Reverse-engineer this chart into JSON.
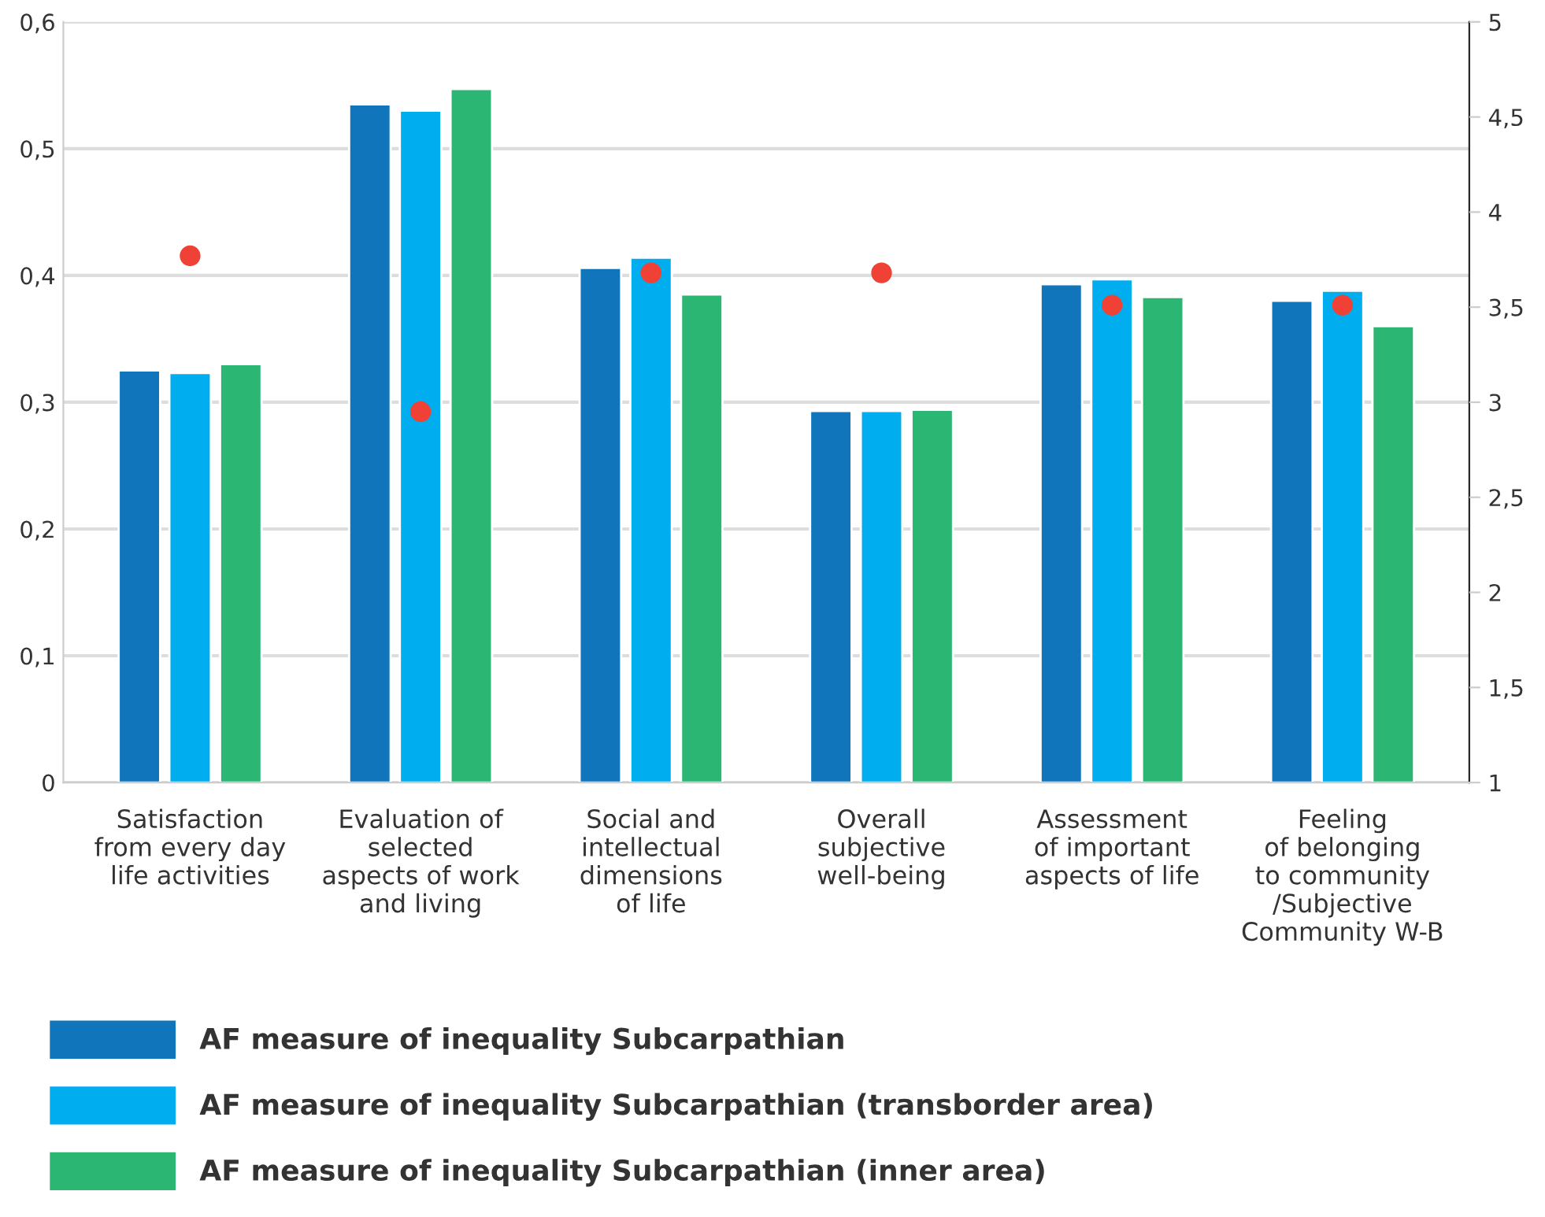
{
  "chart_data": {
    "type": "bar",
    "categories": [
      "Satisfaction\nfrom every day\nlife activities",
      "Evaluation of\nselected\naspects of work\nand living",
      "Social and\nintellectual\ndimensions\nof life",
      "Overall\nsubjective\nwell-being",
      "Assessment\nof important\naspects of life",
      "Feeling\nof belonging\nto community\n/Subjective\nCommunity W-B"
    ],
    "series": [
      {
        "name": "AF measure of inequality Subcarpathian",
        "color": "#1075bb",
        "values": [
          0.325,
          0.535,
          0.406,
          0.293,
          0.393,
          0.38
        ]
      },
      {
        "name": "AF measure of inequality Subcarpathian (transborder area)",
        "color": "#00adee",
        "values": [
          0.323,
          0.53,
          0.414,
          0.293,
          0.397,
          0.388
        ]
      },
      {
        "name": "AF measure of inequality Subcarpathian (inner area)",
        "color": "#2bb673",
        "values": [
          0.33,
          0.547,
          0.385,
          0.294,
          0.383,
          0.36
        ]
      },
      {
        "type": "scatter",
        "axis": "y2",
        "marker": "circle",
        "color": "#ef4136",
        "values": [
          3.77,
          2.95,
          3.68,
          3.68,
          3.51,
          3.51
        ]
      }
    ],
    "ylim": [
      0,
      0.6
    ],
    "yticks": [
      {
        "value": 0,
        "label": "0"
      },
      {
        "value": 0.1,
        "label": "0,1"
      },
      {
        "value": 0.2,
        "label": "0,2"
      },
      {
        "value": 0.3,
        "label": "0,3"
      },
      {
        "value": 0.4,
        "label": "0,4"
      },
      {
        "value": 0.5,
        "label": "0,5"
      },
      {
        "value": 0.6,
        "label": "0,6"
      }
    ],
    "y2lim": [
      1,
      5
    ],
    "y2ticks": [
      1,
      {
        "value": 1.5,
        "label": "1,5"
      },
      2,
      {
        "value": 2.5,
        "label": "2,5"
      },
      3,
      {
        "value": 3.5,
        "label": "3,5"
      },
      4,
      {
        "value": 4.5,
        "label": "4,5"
      },
      5
    ],
    "grid": "y",
    "legend": "bottom"
  }
}
